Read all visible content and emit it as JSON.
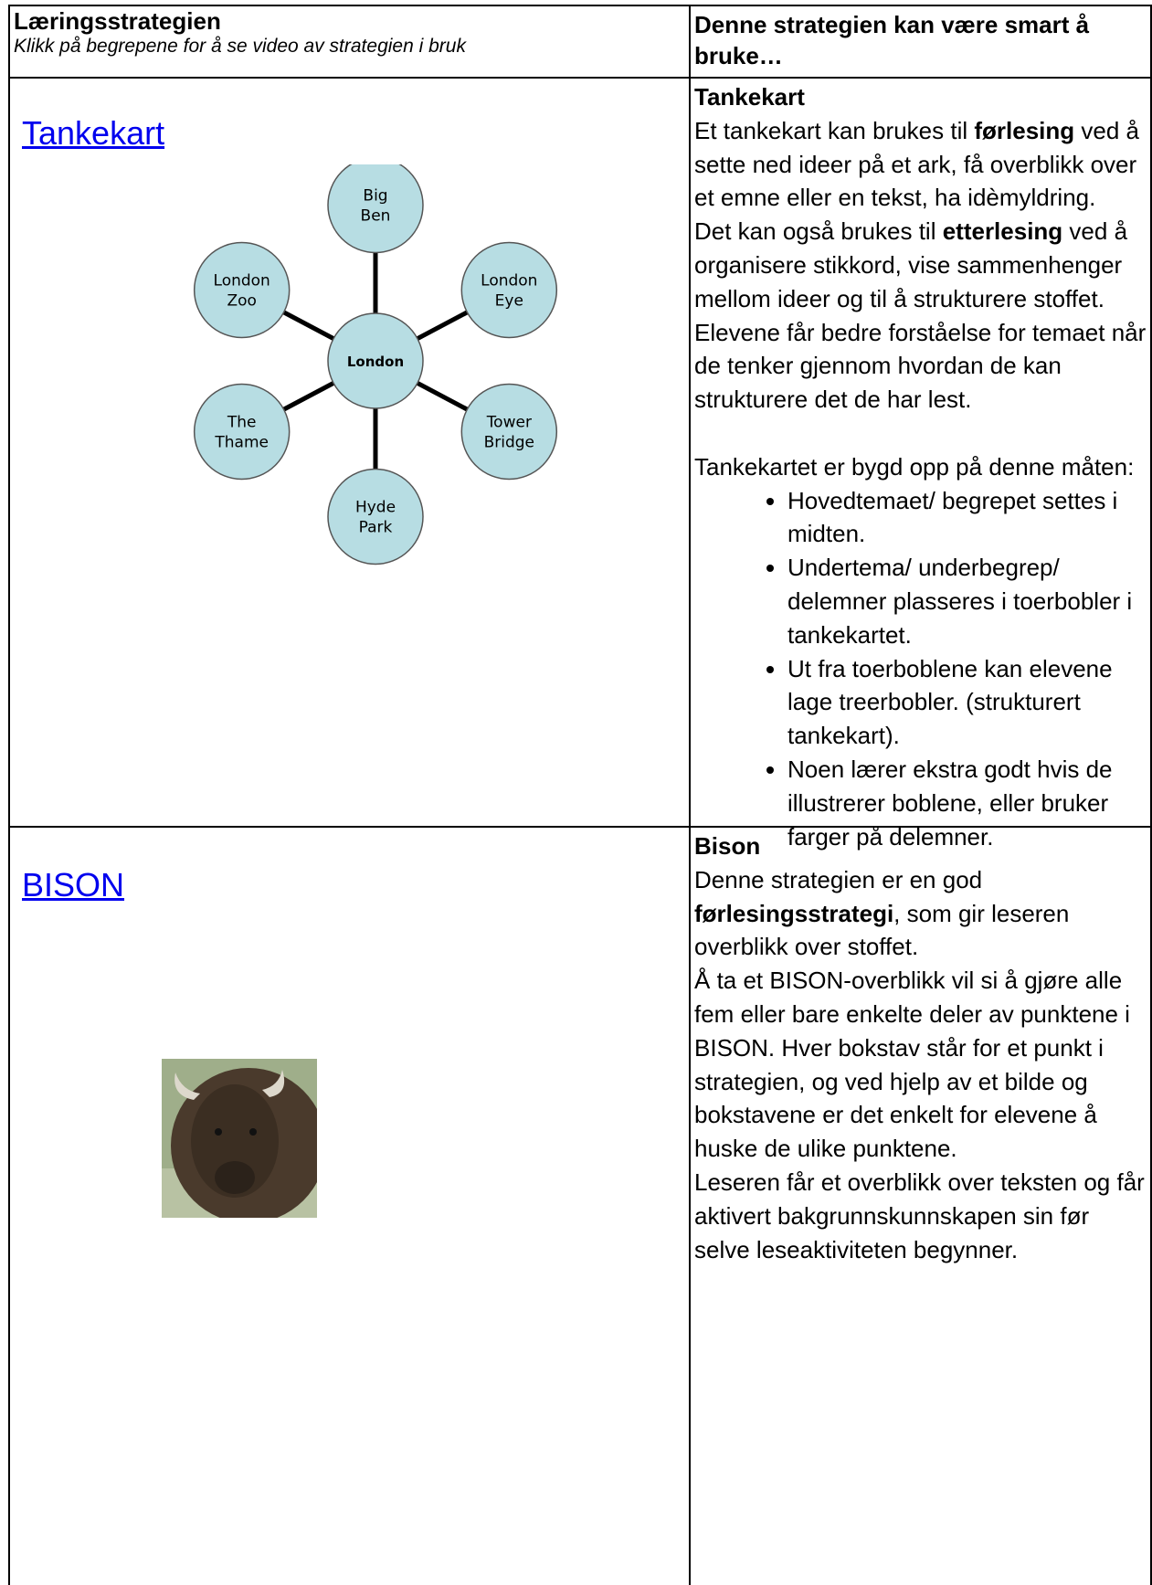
{
  "table": {
    "header": {
      "left": {
        "title": "Læringsstrategien",
        "subtitle": "Klikk på begrepene for å se video av strategien i bruk"
      },
      "right": "Denne strategien kan være smart å bruke…"
    },
    "rows": [
      {
        "link": "Tankekart",
        "diagram": {
          "center": [
            "London"
          ],
          "nodes": [
            [
              "Big",
              "Ben"
            ],
            [
              "London",
              "Eye"
            ],
            [
              "Tower",
              "Bridge"
            ],
            [
              "Hyde",
              "Park"
            ],
            [
              "The",
              "Thame"
            ],
            [
              "London",
              "Zoo"
            ]
          ]
        },
        "description": {
          "title": "Tankekart",
          "paragraphs": [
            [
              {
                "text": "Et tankekart kan brukes til "
              },
              {
                "text": "førlesing",
                "bold": true
              },
              {
                "text": " ved å sette ned ideer på et ark, få overblikk over et emne eller en tekst, ha idèmyldring."
              }
            ],
            [
              {
                "text": "Det kan også brukes til "
              },
              {
                "text": "etterlesing",
                "bold": true
              },
              {
                "text": " ved å organisere stikkord, vise sammenhenger mellom ideer og til å strukturere stoffet. Elevene får bedre forståelse for temaet når de tenker gjennom hvordan de kan strukturere det de har lest."
              }
            ],
            [
              {
                "text": "Tankekartet er bygd opp på denne måten:"
              }
            ]
          ],
          "bullets": [
            "Hovedtemaet/ begrepet settes i midten.",
            "Undertema/ underbegrep/ delemner plasseres i toerbobler i tankekartet.",
            "Ut fra toerboblene kan elevene lage treerbobler. (strukturert tankekart).",
            "Noen lærer ekstra godt hvis de illustrerer boblene, eller bruker farger på delemner."
          ]
        }
      },
      {
        "link": "BISON",
        "description": {
          "title": "Bison",
          "paragraphs": [
            [
              {
                "text": "Denne strategien er en god "
              },
              {
                "text": "førlesingsstrategi",
                "bold": true
              },
              {
                "text": ", som gir leseren overblikk over stoffet."
              }
            ],
            [
              {
                "text": "Å ta et BISON-overblikk vil si å gjøre alle fem eller bare enkelte deler av punktene i BISON. Hver bokstav står for et punkt i strategien, og ved hjelp av et bilde og bokstavene er det enkelt for elevene å huske de ulike punktene."
              }
            ],
            [
              {
                "text": "Leseren får et overblikk over teksten og får aktivert bakgrunnskunnskapen sin før selve leseaktiviteten begynner."
              }
            ]
          ],
          "bullets": []
        }
      }
    ]
  }
}
